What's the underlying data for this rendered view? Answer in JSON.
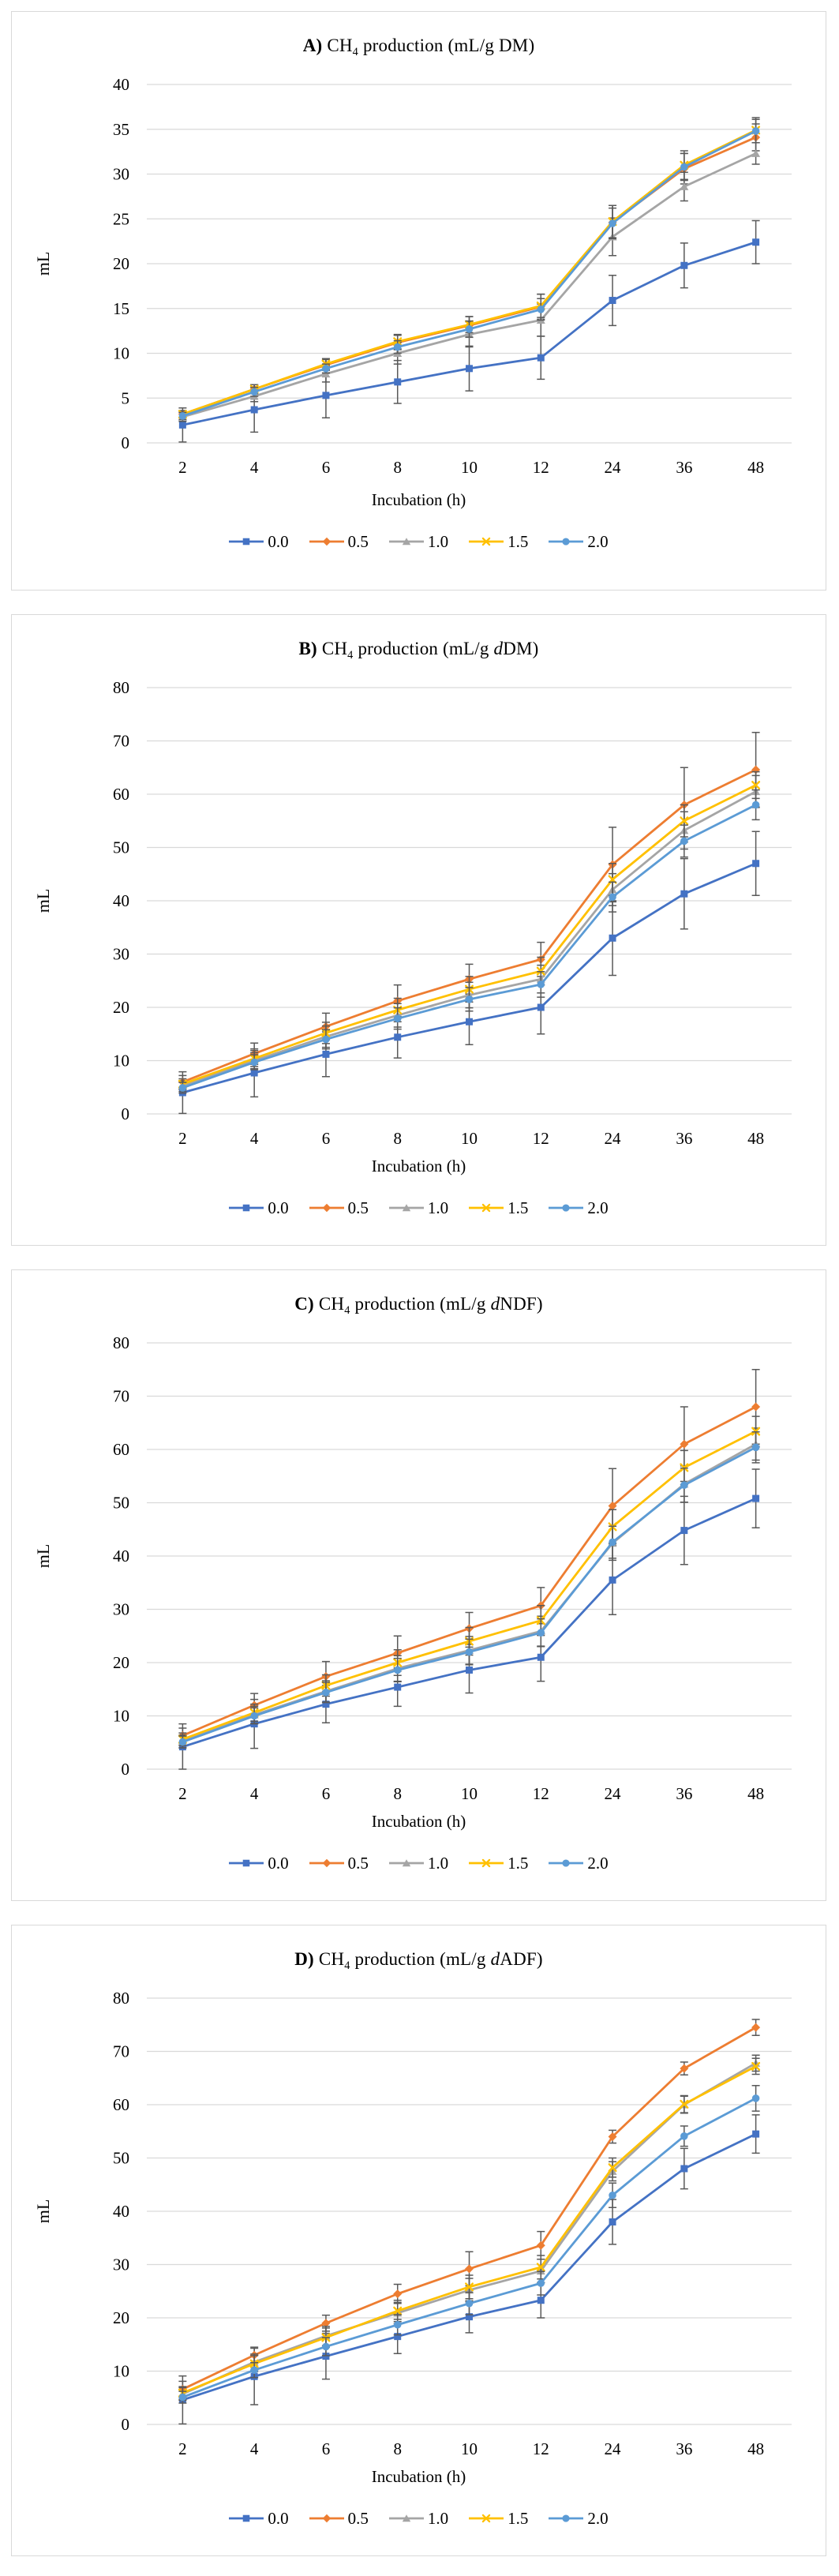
{
  "figure": {
    "xlabel": "Incubation (h)",
    "ylabel": "mL",
    "legend_labels": [
      "0.0",
      "0.5",
      "1.0",
      "1.5",
      "2.0"
    ],
    "colors": {
      "series_0_0": "#4472C4",
      "series_0_5": "#ED7D31",
      "series_1_0": "#A5A5A5",
      "series_1_5": "#FFC000",
      "series_2_0": "#5B9BD5",
      "error_bar": "#595959",
      "gridline": "#D9D9D9",
      "panel_border": "#D9D9D9"
    }
  },
  "chart_data": [
    {
      "type": "line",
      "panel": "A",
      "title_plain": "A) CH4 production (mL/g DM)",
      "title_segments": [
        {
          "text": "A) ",
          "bold": true
        },
        {
          "text": "CH"
        },
        {
          "text": "4",
          "sub": true
        },
        {
          "text": " production (mL/g DM)"
        }
      ],
      "xlabel": "Incubation (h)",
      "ylabel": "mL",
      "ylim": [
        0,
        40
      ],
      "ystep": 5,
      "grid": true,
      "legend_position": "bottom",
      "categories": [
        2,
        4,
        6,
        8,
        10,
        12,
        24,
        36,
        48
      ],
      "series": [
        {
          "name": "0.0",
          "color": "#4472C4",
          "marker": "square",
          "values": [
            2.0,
            3.7,
            5.3,
            6.8,
            8.3,
            9.5,
            15.9,
            19.8,
            22.4
          ],
          "errors": [
            1.9,
            2.5,
            2.5,
            2.4,
            2.5,
            2.4,
            2.8,
            2.5,
            2.4
          ]
        },
        {
          "name": "0.5",
          "color": "#ED7D31",
          "marker": "diamond",
          "values": [
            3.2,
            6.0,
            8.7,
            11.2,
            13.1,
            15.2,
            24.6,
            30.6,
            34.1
          ],
          "errors": [
            0.4,
            0.5,
            0.6,
            0.8,
            1.0,
            1.4,
            1.9,
            1.7,
            1.5
          ]
        },
        {
          "name": "1.0",
          "color": "#A5A5A5",
          "marker": "triangle",
          "values": [
            2.9,
            5.2,
            7.7,
            10.0,
            12.1,
            13.7,
            23.0,
            28.6,
            32.3
          ],
          "errors": [
            0.5,
            0.6,
            0.9,
            1.2,
            1.4,
            1.8,
            2.1,
            1.6,
            1.2
          ]
        },
        {
          "name": "1.5",
          "color": "#FFC000",
          "marker": "x",
          "values": [
            3.2,
            6.0,
            8.8,
            11.3,
            13.2,
            15.3,
            24.7,
            31.0,
            34.9
          ],
          "errors": [
            0.4,
            0.5,
            0.6,
            0.8,
            0.9,
            1.3,
            1.8,
            1.6,
            1.4
          ]
        },
        {
          "name": "2.0",
          "color": "#5B9BD5",
          "marker": "circle",
          "values": [
            3.0,
            5.7,
            8.3,
            10.7,
            12.7,
            14.9,
            24.5,
            30.8,
            34.8
          ],
          "errors": [
            0.4,
            0.5,
            0.5,
            0.7,
            0.9,
            1.2,
            1.7,
            1.5,
            1.3
          ]
        }
      ]
    },
    {
      "type": "line",
      "panel": "B",
      "title_plain": "B) CH4 production (mL/g dDM)",
      "title_segments": [
        {
          "text": "B) ",
          "bold": true
        },
        {
          "text": "CH"
        },
        {
          "text": "4",
          "sub": true
        },
        {
          "text": " production (mL/g "
        },
        {
          "text": "d",
          "italic": true
        },
        {
          "text": "DM)"
        }
      ],
      "xlabel": "Incubation (h)",
      "ylabel": "mL",
      "ylim": [
        0,
        80
      ],
      "ystep": 10,
      "grid": true,
      "legend_position": "bottom",
      "categories": [
        2,
        4,
        6,
        8,
        10,
        12,
        24,
        36,
        48
      ],
      "series": [
        {
          "name": "0.0",
          "color": "#4472C4",
          "marker": "square",
          "values": [
            4.0,
            7.7,
            11.2,
            14.4,
            17.3,
            20.0,
            33.0,
            41.3,
            47.0
          ],
          "errors": [
            3.9,
            4.5,
            4.2,
            3.9,
            4.3,
            5.0,
            7.0,
            6.6,
            6.0
          ]
        },
        {
          "name": "0.5",
          "color": "#ED7D31",
          "marker": "diamond",
          "values": [
            6.0,
            11.3,
            16.4,
            21.2,
            25.3,
            29.0,
            46.8,
            58.0,
            64.6
          ],
          "errors": [
            1.2,
            2.0,
            2.5,
            3.0,
            2.8,
            3.2,
            7.0,
            7.0,
            7.0
          ]
        },
        {
          "name": "1.0",
          "color": "#A5A5A5",
          "marker": "triangle",
          "values": [
            5.2,
            10.0,
            14.5,
            18.5,
            22.3,
            25.3,
            42.1,
            53.2,
            60.5
          ],
          "errors": [
            1.0,
            1.5,
            2.0,
            2.2,
            2.4,
            2.6,
            3.0,
            3.5,
            3.0
          ]
        },
        {
          "name": "1.5",
          "color": "#FFC000",
          "marker": "x",
          "values": [
            5.6,
            10.4,
            15.2,
            19.5,
            23.4,
            26.8,
            44.0,
            55.0,
            61.7
          ],
          "errors": [
            1.0,
            1.5,
            2.0,
            2.2,
            2.4,
            2.6,
            3.0,
            3.0,
            2.5
          ]
        },
        {
          "name": "2.0",
          "color": "#5B9BD5",
          "marker": "circle",
          "values": [
            4.9,
            9.7,
            14.0,
            17.9,
            21.5,
            24.3,
            40.7,
            51.2,
            58.0
          ],
          "errors": [
            1.0,
            1.4,
            1.8,
            2.0,
            2.2,
            2.4,
            2.8,
            3.0,
            2.8
          ]
        }
      ]
    },
    {
      "type": "line",
      "panel": "C",
      "title_plain": "C) CH4 production (mL/g dNDF)",
      "title_segments": [
        {
          "text": "C) ",
          "bold": true
        },
        {
          "text": "CH"
        },
        {
          "text": "4",
          "sub": true
        },
        {
          "text": " production (mL/g "
        },
        {
          "text": "d",
          "italic": true
        },
        {
          "text": "NDF)"
        }
      ],
      "xlabel": "Incubation (h)",
      "ylabel": "mL",
      "ylim": [
        0,
        80
      ],
      "ystep": 10,
      "grid": true,
      "legend_position": "bottom",
      "categories": [
        2,
        4,
        6,
        8,
        10,
        12,
        24,
        36,
        48
      ],
      "series": [
        {
          "name": "0.0",
          "color": "#4472C4",
          "marker": "square",
          "values": [
            4.2,
            8.5,
            12.2,
            15.4,
            18.6,
            21.0,
            35.5,
            44.8,
            50.8
          ],
          "errors": [
            4.3,
            4.6,
            3.5,
            3.6,
            4.3,
            4.5,
            6.5,
            6.4,
            5.5
          ]
        },
        {
          "name": "0.5",
          "color": "#ED7D31",
          "marker": "diamond",
          "values": [
            6.3,
            12.0,
            17.4,
            21.8,
            26.4,
            30.7,
            49.4,
            61.0,
            68.0
          ],
          "errors": [
            1.4,
            2.2,
            2.8,
            3.2,
            3.0,
            3.4,
            7.0,
            7.0,
            7.0
          ]
        },
        {
          "name": "1.0",
          "color": "#A5A5A5",
          "marker": "triangle",
          "values": [
            5.2,
            10.2,
            14.6,
            18.9,
            22.3,
            25.9,
            42.4,
            53.5,
            61.0
          ],
          "errors": [
            1.2,
            1.6,
            2.0,
            2.4,
            2.6,
            2.8,
            3.2,
            3.4,
            3.0
          ]
        },
        {
          "name": "1.5",
          "color": "#FFC000",
          "marker": "x",
          "values": [
            5.6,
            10.6,
            15.7,
            20.0,
            24.0,
            27.9,
            45.5,
            56.6,
            63.4
          ],
          "errors": [
            1.2,
            1.6,
            2.0,
            2.4,
            2.6,
            2.8,
            3.2,
            3.2,
            2.8
          ]
        },
        {
          "name": "2.0",
          "color": "#5B9BD5",
          "marker": "circle",
          "values": [
            5.1,
            10.0,
            14.4,
            18.6,
            22.0,
            25.6,
            42.6,
            53.3,
            60.4
          ],
          "errors": [
            1.1,
            1.5,
            1.9,
            2.2,
            2.4,
            2.6,
            3.0,
            3.2,
            2.9
          ]
        }
      ]
    },
    {
      "type": "line",
      "panel": "D",
      "title_plain": "D) CH4 production (mL/g dADF)",
      "title_segments": [
        {
          "text": "D) ",
          "bold": true
        },
        {
          "text": "CH"
        },
        {
          "text": "4",
          "sub": true
        },
        {
          "text": " production (mL/g "
        },
        {
          "text": "d",
          "italic": true
        },
        {
          "text": "ADF)"
        }
      ],
      "xlabel": "Incubation (h)",
      "ylabel": "mL",
      "ylim": [
        0,
        80
      ],
      "ystep": 10,
      "grid": true,
      "legend_position": "bottom",
      "categories": [
        2,
        4,
        6,
        8,
        10,
        12,
        24,
        36,
        48
      ],
      "series": [
        {
          "name": "0.0",
          "color": "#4472C4",
          "marker": "square",
          "values": [
            4.6,
            9.0,
            12.8,
            16.5,
            20.2,
            23.3,
            38.0,
            48.0,
            54.5
          ],
          "errors": [
            4.5,
            5.3,
            4.3,
            3.2,
            3.0,
            3.3,
            4.2,
            3.8,
            3.6
          ]
        },
        {
          "name": "0.5",
          "color": "#ED7D31",
          "marker": "diamond",
          "values": [
            6.6,
            13.0,
            19.0,
            24.5,
            29.2,
            33.6,
            54.0,
            66.8,
            74.5
          ],
          "errors": [
            1.5,
            1.5,
            1.5,
            1.8,
            3.2,
            2.6,
            1.2,
            1.2,
            1.5
          ]
        },
        {
          "name": "1.0",
          "color": "#A5A5A5",
          "marker": "triangle",
          "values": [
            5.7,
            11.7,
            16.6,
            20.9,
            25.2,
            28.8,
            47.5,
            60.0,
            67.8
          ],
          "errors": [
            1.2,
            1.5,
            1.8,
            2.0,
            2.2,
            2.2,
            1.8,
            1.6,
            1.5
          ]
        },
        {
          "name": "1.5",
          "color": "#FFC000",
          "marker": "x",
          "values": [
            5.9,
            11.4,
            16.3,
            21.3,
            25.8,
            29.5,
            48.2,
            60.1,
            67.2
          ],
          "errors": [
            1.2,
            1.5,
            1.8,
            2.0,
            2.2,
            2.2,
            1.8,
            1.6,
            1.5
          ]
        },
        {
          "name": "2.0",
          "color": "#5B9BD5",
          "marker": "circle",
          "values": [
            5.1,
            10.2,
            14.6,
            18.7,
            22.7,
            26.5,
            43.0,
            54.1,
            61.2
          ],
          "errors": [
            1.1,
            1.4,
            1.7,
            1.9,
            2.1,
            2.2,
            2.3,
            1.9,
            2.4
          ]
        }
      ]
    }
  ]
}
